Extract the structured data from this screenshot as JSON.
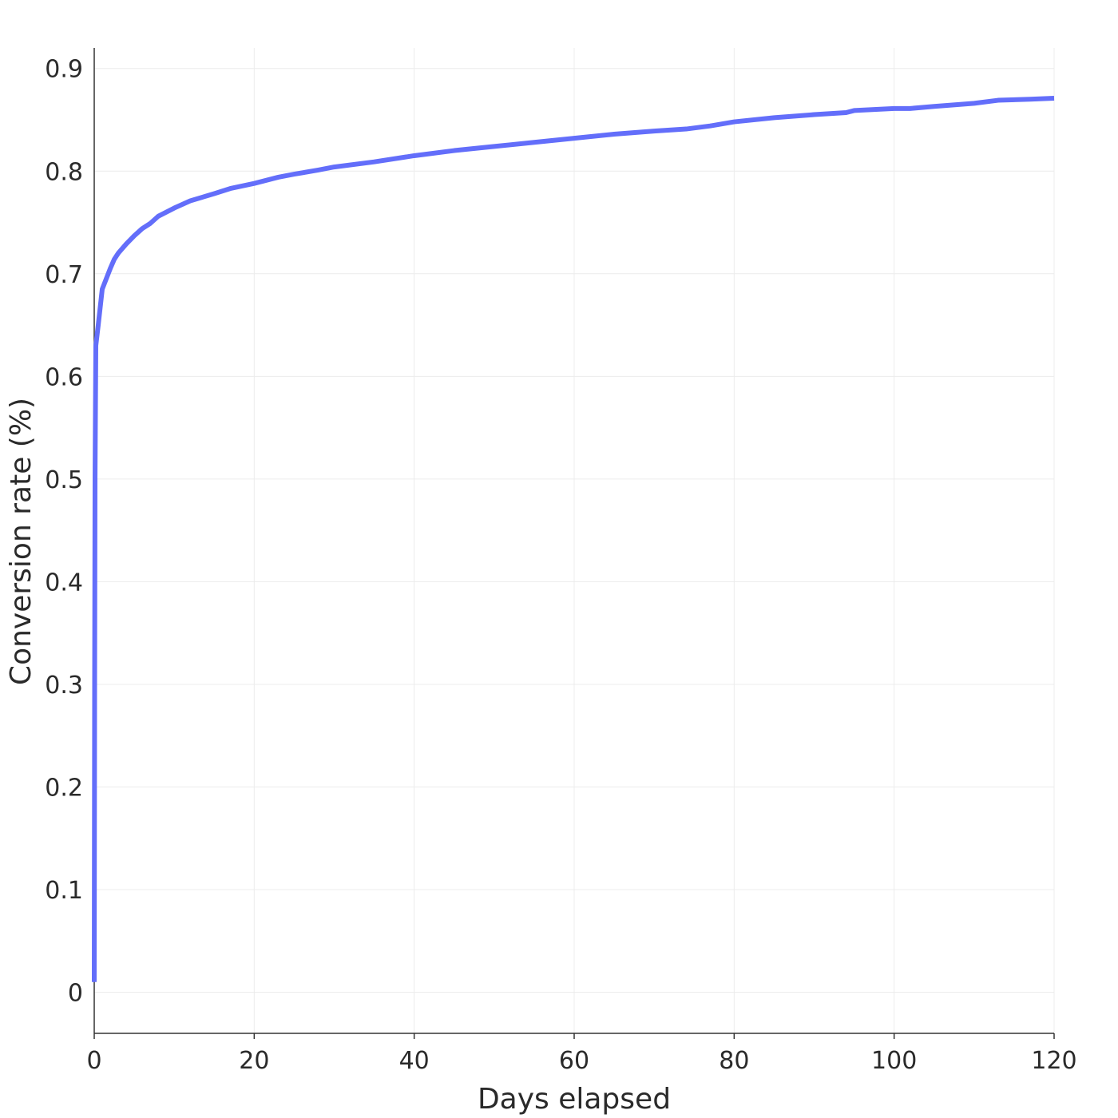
{
  "chart_data": {
    "type": "line",
    "title": "",
    "xlabel": "Days elapsed",
    "ylabel": "Conversion rate (%)",
    "xlim": [
      0,
      120
    ],
    "ylim": [
      -0.04,
      0.92
    ],
    "xticks": [
      0,
      20,
      40,
      60,
      80,
      100,
      120
    ],
    "xtick_labels": [
      "0",
      "20",
      "40",
      "60",
      "80",
      "100",
      "120"
    ],
    "yticks": [
      0,
      0.1,
      0.2,
      0.3,
      0.4,
      0.5,
      0.6,
      0.7,
      0.8,
      0.9
    ],
    "ytick_labels": [
      "0",
      "0.1",
      "0.2",
      "0.3",
      "0.4",
      "0.5",
      "0.6",
      "0.7",
      "0.8",
      "0.9"
    ],
    "grid": true,
    "line_color": "#636efa",
    "series": [
      {
        "x": [
          0.0,
          0.05,
          0.1,
          0.2,
          0.5,
          1.0,
          1.5,
          2.0,
          2.5,
          3.0,
          4.0,
          5.0,
          6.0,
          7.0,
          8.0,
          10.0,
          12.0,
          15.0,
          17.0,
          20.0,
          23.0,
          25.0,
          28.0,
          30.0,
          35.0,
          40.0,
          45.0,
          50.0,
          55.0,
          60.0,
          65.0,
          70.0,
          74.0,
          77.0,
          80.0,
          85.0,
          90.0,
          94.0,
          95.0,
          100.0,
          102.0,
          105.0,
          110.0,
          113.0,
          117.0,
          120.0
        ],
        "y": [
          0.01,
          0.3,
          0.5,
          0.63,
          0.65,
          0.685,
          0.695,
          0.705,
          0.714,
          0.72,
          0.729,
          0.737,
          0.744,
          0.749,
          0.756,
          0.764,
          0.771,
          0.778,
          0.783,
          0.788,
          0.794,
          0.797,
          0.801,
          0.804,
          0.809,
          0.815,
          0.82,
          0.824,
          0.828,
          0.832,
          0.836,
          0.839,
          0.841,
          0.844,
          0.848,
          0.852,
          0.855,
          0.857,
          0.859,
          0.861,
          0.861,
          0.863,
          0.866,
          0.869,
          0.87,
          0.871
        ]
      }
    ]
  }
}
